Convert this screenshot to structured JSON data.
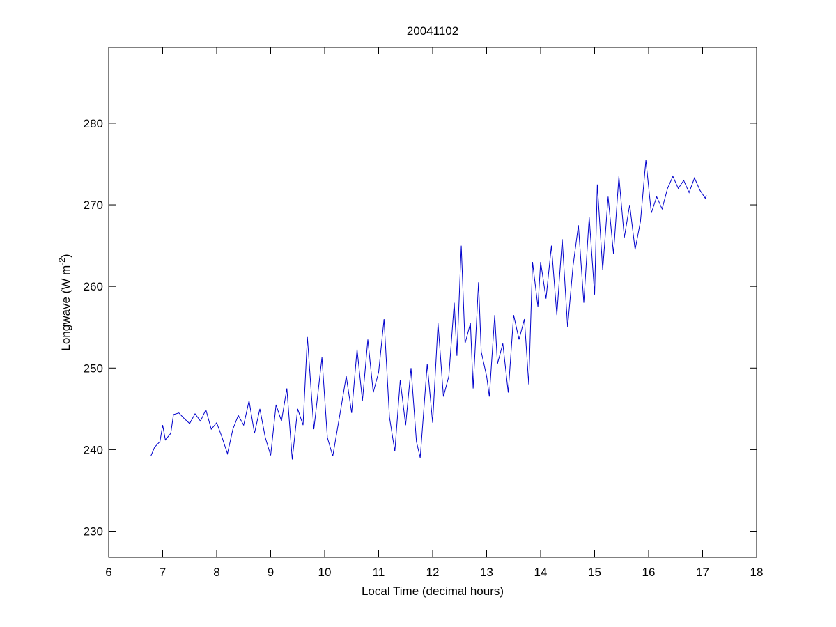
{
  "chart_data": {
    "type": "line",
    "title": "20041102",
    "xlabel": "Local Time (decimal hours)",
    "ylabel": {
      "text": "Longwave (W m",
      "sup": "-2",
      "end": ")"
    },
    "xlim": [
      6,
      18
    ],
    "xticks": [
      6,
      7,
      8,
      9,
      10,
      11,
      12,
      13,
      14,
      15,
      16,
      17,
      18
    ],
    "ylim": [
      226.8,
      289.3
    ],
    "yticks": [
      230,
      240,
      250,
      260,
      270,
      280
    ],
    "grid": false,
    "series": [
      {
        "color": "#0000cc",
        "x": [
          6.78,
          6.85,
          6.95,
          7.0,
          7.05,
          7.15,
          7.2,
          7.3,
          7.4,
          7.5,
          7.6,
          7.7,
          7.8,
          7.9,
          8.0,
          8.1,
          8.2,
          8.3,
          8.4,
          8.5,
          8.6,
          8.7,
          8.8,
          8.9,
          9.0,
          9.1,
          9.2,
          9.3,
          9.4,
          9.5,
          9.6,
          9.68,
          9.8,
          9.95,
          10.05,
          10.15,
          10.3,
          10.4,
          10.5,
          10.6,
          10.7,
          10.8,
          10.9,
          11.0,
          11.1,
          11.2,
          11.3,
          11.4,
          11.5,
          11.6,
          11.7,
          11.77,
          11.9,
          12.0,
          12.1,
          12.2,
          12.3,
          12.4,
          12.45,
          12.53,
          12.6,
          12.7,
          12.75,
          12.85,
          12.9,
          13.0,
          13.05,
          13.15,
          13.2,
          13.3,
          13.4,
          13.5,
          13.6,
          13.7,
          13.78,
          13.85,
          13.95,
          14.0,
          14.1,
          14.2,
          14.3,
          14.4,
          14.5,
          14.6,
          14.7,
          14.8,
          14.9,
          15.0,
          15.05,
          15.15,
          15.25,
          15.35,
          15.45,
          15.55,
          15.65,
          15.75,
          15.85,
          15.95,
          16.05,
          16.15,
          16.25,
          16.35,
          16.45,
          16.55,
          16.65,
          16.75,
          16.85,
          16.95,
          17.05,
          17.07
        ],
        "values": [
          239.2,
          240.3,
          241.0,
          243.0,
          241.2,
          242.0,
          244.3,
          244.5,
          243.8,
          243.2,
          244.4,
          243.5,
          244.9,
          242.5,
          243.3,
          241.5,
          239.5,
          242.5,
          244.2,
          243.0,
          246.0,
          242.0,
          245.0,
          241.5,
          239.3,
          245.5,
          243.5,
          247.5,
          238.8,
          245.0,
          243.0,
          253.8,
          242.5,
          251.3,
          241.5,
          239.2,
          245.0,
          249.0,
          244.5,
          252.3,
          246.0,
          253.5,
          247.0,
          249.5,
          256.0,
          244.0,
          239.8,
          248.5,
          243.0,
          250.0,
          241.0,
          239.0,
          250.5,
          243.3,
          255.5,
          246.5,
          249.0,
          258.0,
          251.5,
          265.0,
          253.0,
          255.5,
          247.5,
          260.5,
          252.0,
          249.0,
          246.5,
          256.5,
          250.5,
          253.0,
          247.0,
          256.5,
          253.5,
          256.0,
          248.0,
          263.0,
          257.5,
          263.0,
          258.5,
          265.0,
          256.5,
          265.8,
          255.0,
          262.5,
          267.5,
          258.0,
          268.5,
          259.0,
          272.5,
          262.0,
          271.0,
          264.0,
          273.5,
          266.0,
          270.0,
          264.5,
          268.0,
          275.5,
          269.0,
          271.0,
          269.5,
          272.0,
          273.5,
          272.0,
          273.0,
          271.5,
          273.3,
          271.8,
          270.8,
          271.2
        ]
      }
    ]
  }
}
